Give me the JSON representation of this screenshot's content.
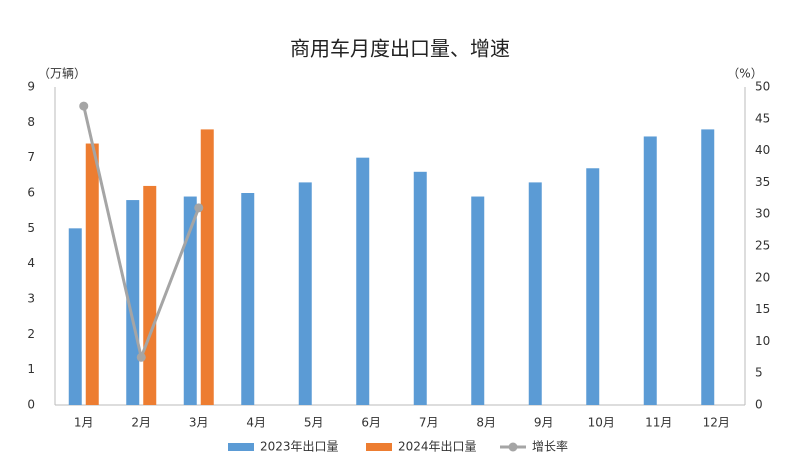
{
  "chart_data": {
    "type": "bar",
    "title": "商用车月度出口量、增速",
    "y_label": "（万辆）",
    "y2_label": "（%）",
    "categories": [
      "1月",
      "2月",
      "3月",
      "4月",
      "5月",
      "6月",
      "7月",
      "8月",
      "9月",
      "10月",
      "11月",
      "12月"
    ],
    "series": [
      {
        "name": "2023年出口量",
        "color": "#5b9bd5",
        "type": "bar",
        "values": [
          5.0,
          5.8,
          5.9,
          6.0,
          6.3,
          7.0,
          6.6,
          5.9,
          6.3,
          6.7,
          7.6,
          7.8
        ]
      },
      {
        "name": "2024年出口量",
        "color": "#ed7d31",
        "type": "bar",
        "values": [
          7.4,
          6.2,
          7.8,
          null,
          null,
          null,
          null,
          null,
          null,
          null,
          null,
          null
        ]
      },
      {
        "name": "增长率",
        "color": "#a5a5a5",
        "type": "line",
        "axis": "y2",
        "values": [
          47,
          7.5,
          31,
          null,
          null,
          null,
          null,
          null,
          null,
          null,
          null,
          null
        ]
      }
    ],
    "ylim": [
      0,
      9
    ],
    "yticks": [
      0,
      1,
      2,
      3,
      4,
      5,
      6,
      7,
      8,
      9
    ],
    "y2lim": [
      0,
      50
    ],
    "y2ticks": [
      0,
      5,
      10,
      15,
      20,
      25,
      30,
      35,
      40,
      45,
      50
    ],
    "grid": false
  }
}
